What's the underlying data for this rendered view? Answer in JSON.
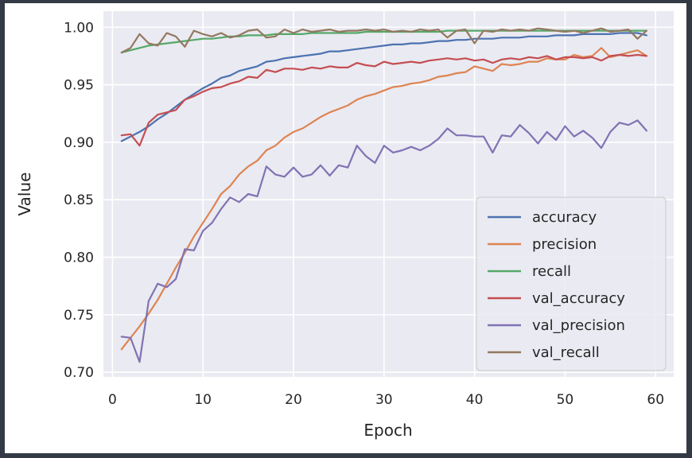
{
  "chart_data": {
    "type": "line",
    "title": "",
    "xlabel": "Epoch",
    "ylabel": "Value",
    "xlim": [
      -1,
      62
    ],
    "ylim": [
      0.696,
      1.014
    ],
    "xticks": [
      0,
      10,
      20,
      30,
      40,
      50,
      60
    ],
    "yticks": [
      0.7,
      0.75,
      0.8,
      0.85,
      0.9,
      0.95,
      1.0
    ],
    "xtick_labels": [
      "0",
      "10",
      "20",
      "30",
      "40",
      "50",
      "60"
    ],
    "ytick_labels": [
      "0.70",
      "0.75",
      "0.80",
      "0.85",
      "0.90",
      "0.95",
      "1.00"
    ],
    "grid": true,
    "legend_position": "lower-right",
    "x": [
      1,
      2,
      3,
      4,
      5,
      6,
      7,
      8,
      9,
      10,
      11,
      12,
      13,
      14,
      15,
      16,
      17,
      18,
      19,
      20,
      21,
      22,
      23,
      24,
      25,
      26,
      27,
      28,
      29,
      30,
      31,
      32,
      33,
      34,
      35,
      36,
      37,
      38,
      39,
      40,
      41,
      42,
      43,
      44,
      45,
      46,
      47,
      48,
      49,
      50,
      51,
      52,
      53,
      54,
      55,
      56,
      57,
      58,
      59
    ],
    "series": [
      {
        "name": "accuracy",
        "color": "#4c72b0",
        "values": [
          0.901,
          0.905,
          0.909,
          0.914,
          0.92,
          0.925,
          0.931,
          0.937,
          0.942,
          0.947,
          0.951,
          0.956,
          0.958,
          0.962,
          0.964,
          0.966,
          0.97,
          0.971,
          0.973,
          0.974,
          0.975,
          0.976,
          0.977,
          0.979,
          0.979,
          0.98,
          0.981,
          0.982,
          0.983,
          0.984,
          0.985,
          0.985,
          0.986,
          0.986,
          0.987,
          0.988,
          0.988,
          0.989,
          0.989,
          0.99,
          0.99,
          0.99,
          0.991,
          0.991,
          0.991,
          0.992,
          0.992,
          0.992,
          0.993,
          0.993,
          0.993,
          0.994,
          0.994,
          0.994,
          0.994,
          0.995,
          0.995,
          0.995,
          0.993
        ]
      },
      {
        "name": "precision",
        "color": "#dd8452",
        "values": [
          0.72,
          0.73,
          0.74,
          0.751,
          0.763,
          0.777,
          0.791,
          0.804,
          0.818,
          0.83,
          0.842,
          0.855,
          0.862,
          0.872,
          0.879,
          0.884,
          0.893,
          0.897,
          0.904,
          0.909,
          0.912,
          0.917,
          0.922,
          0.926,
          0.929,
          0.932,
          0.937,
          0.94,
          0.942,
          0.945,
          0.948,
          0.949,
          0.951,
          0.952,
          0.954,
          0.957,
          0.958,
          0.96,
          0.961,
          0.966,
          0.964,
          0.962,
          0.968,
          0.967,
          0.968,
          0.97,
          0.97,
          0.973,
          0.972,
          0.972,
          0.976,
          0.974,
          0.975,
          0.982,
          0.974,
          0.976,
          0.978,
          0.98,
          0.975
        ]
      },
      {
        "name": "recall",
        "color": "#55a868",
        "values": [
          0.978,
          0.98,
          0.982,
          0.984,
          0.985,
          0.986,
          0.987,
          0.988,
          0.989,
          0.99,
          0.99,
          0.991,
          0.992,
          0.992,
          0.993,
          0.993,
          0.993,
          0.994,
          0.994,
          0.994,
          0.994,
          0.995,
          0.995,
          0.995,
          0.995,
          0.995,
          0.995,
          0.996,
          0.996,
          0.996,
          0.996,
          0.996,
          0.996,
          0.996,
          0.996,
          0.996,
          0.997,
          0.997,
          0.997,
          0.997,
          0.997,
          0.997,
          0.997,
          0.997,
          0.997,
          0.997,
          0.997,
          0.997,
          0.997,
          0.997,
          0.997,
          0.997,
          0.997,
          0.997,
          0.997,
          0.997,
          0.997,
          0.997,
          0.997
        ]
      },
      {
        "name": "val_accuracy",
        "color": "#c44e52",
        "values": [
          0.906,
          0.907,
          0.897,
          0.917,
          0.924,
          0.926,
          0.928,
          0.937,
          0.94,
          0.944,
          0.947,
          0.948,
          0.951,
          0.953,
          0.957,
          0.956,
          0.963,
          0.961,
          0.964,
          0.964,
          0.963,
          0.965,
          0.964,
          0.966,
          0.965,
          0.965,
          0.969,
          0.967,
          0.966,
          0.97,
          0.968,
          0.969,
          0.97,
          0.969,
          0.971,
          0.972,
          0.973,
          0.972,
          0.973,
          0.971,
          0.972,
          0.969,
          0.972,
          0.973,
          0.972,
          0.974,
          0.973,
          0.975,
          0.972,
          0.974,
          0.974,
          0.973,
          0.974,
          0.971,
          0.975,
          0.976,
          0.975,
          0.976,
          0.975
        ]
      },
      {
        "name": "val_precision",
        "color": "#8172b3",
        "values": [
          0.731,
          0.73,
          0.709,
          0.762,
          0.777,
          0.774,
          0.781,
          0.807,
          0.806,
          0.823,
          0.83,
          0.842,
          0.852,
          0.848,
          0.855,
          0.853,
          0.879,
          0.872,
          0.87,
          0.878,
          0.87,
          0.872,
          0.88,
          0.871,
          0.88,
          0.878,
          0.897,
          0.888,
          0.882,
          0.897,
          0.891,
          0.893,
          0.896,
          0.893,
          0.897,
          0.903,
          0.912,
          0.906,
          0.906,
          0.905,
          0.905,
          0.891,
          0.906,
          0.905,
          0.915,
          0.908,
          0.899,
          0.909,
          0.902,
          0.914,
          0.905,
          0.91,
          0.904,
          0.895,
          0.909,
          0.917,
          0.915,
          0.919,
          0.91
        ]
      },
      {
        "name": "val_recall",
        "color": "#937860",
        "values": [
          0.978,
          0.982,
          0.994,
          0.986,
          0.984,
          0.995,
          0.992,
          0.983,
          0.997,
          0.994,
          0.992,
          0.995,
          0.991,
          0.993,
          0.997,
          0.998,
          0.991,
          0.992,
          0.998,
          0.995,
          0.998,
          0.996,
          0.997,
          0.998,
          0.996,
          0.997,
          0.997,
          0.998,
          0.997,
          0.998,
          0.996,
          0.997,
          0.996,
          0.998,
          0.997,
          0.998,
          0.991,
          0.997,
          0.998,
          0.986,
          0.997,
          0.996,
          0.998,
          0.997,
          0.998,
          0.997,
          0.999,
          0.998,
          0.997,
          0.996,
          0.997,
          0.995,
          0.997,
          0.999,
          0.996,
          0.997,
          0.998,
          0.99,
          0.997
        ]
      }
    ]
  },
  "style": {
    "plot_background": "#eaeaf2",
    "grid_color": "#ffffff",
    "frame_color": "#333a45"
  }
}
